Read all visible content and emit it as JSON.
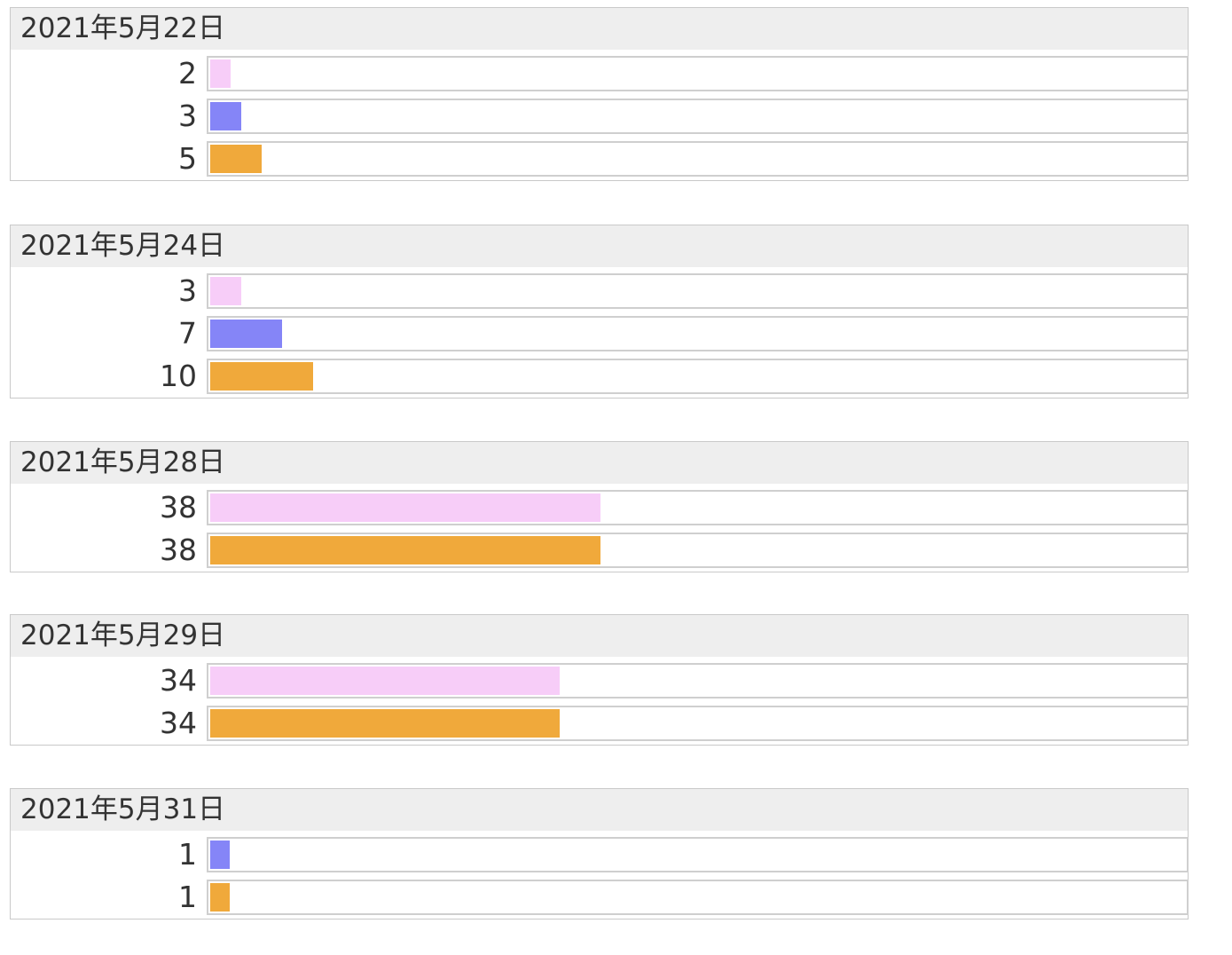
{
  "chart_data": {
    "type": "bar",
    "orientation": "horizontal",
    "value_max": 100,
    "series_colors": {
      "pink": "#f7cdf8",
      "blue": "#8585f7",
      "orange": "#f0a93b"
    },
    "groups": [
      {
        "title": "2021年5月22日",
        "rows": [
          {
            "label": "2",
            "value": 2,
            "color": "#f7cdf8"
          },
          {
            "label": "3",
            "value": 3,
            "color": "#8585f7"
          },
          {
            "label": "5",
            "value": 5,
            "color": "#f0a93b"
          }
        ]
      },
      {
        "title": "2021年5月24日",
        "rows": [
          {
            "label": "3",
            "value": 3,
            "color": "#f7cdf8"
          },
          {
            "label": "7",
            "value": 7,
            "color": "#8585f7"
          },
          {
            "label": "10",
            "value": 10,
            "color": "#f0a93b"
          }
        ]
      },
      {
        "title": "2021年5月28日",
        "rows": [
          {
            "label": "38",
            "value": 38,
            "color": "#f7cdf8"
          },
          {
            "label": "38",
            "value": 38,
            "color": "#f0a93b"
          }
        ]
      },
      {
        "title": "2021年5月29日",
        "rows": [
          {
            "label": "34",
            "value": 34,
            "color": "#f7cdf8"
          },
          {
            "label": "34",
            "value": 34,
            "color": "#f0a93b"
          }
        ]
      },
      {
        "title": "2021年5月31日",
        "rows": [
          {
            "label": "1",
            "value": 1,
            "color": "#8585f7"
          },
          {
            "label": "1",
            "value": 1,
            "color": "#f0a93b"
          }
        ]
      }
    ]
  }
}
